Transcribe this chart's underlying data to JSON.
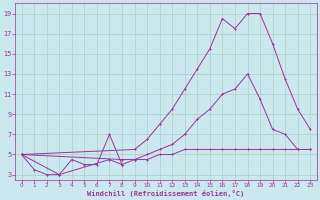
{
  "background_color": "#cce8ef",
  "grid_color": "#aacccc",
  "line_color": "#993399",
  "marker_color": "#993399",
  "xlabel": "Windchill (Refroidissement éolien,°C)",
  "xlabel_color": "#993399",
  "tick_color": "#993399",
  "xlim": [
    -0.5,
    23.5
  ],
  "ylim": [
    2.5,
    20
  ],
  "yticks": [
    3,
    5,
    7,
    9,
    11,
    13,
    15,
    17,
    19
  ],
  "xticks": [
    0,
    1,
    2,
    3,
    4,
    5,
    6,
    7,
    8,
    9,
    10,
    11,
    12,
    13,
    14,
    15,
    16,
    17,
    18,
    19,
    20,
    21,
    22,
    23
  ],
  "s1_x": [
    0,
    1,
    2,
    3,
    4,
    5,
    6,
    7,
    8
  ],
  "s1_y": [
    5,
    3.5,
    3,
    3,
    4.5,
    4,
    4,
    7,
    4
  ],
  "s2_x": [
    0,
    8,
    9,
    10,
    11,
    12,
    13,
    14,
    15,
    16,
    17,
    18,
    19,
    20,
    21,
    22,
    23
  ],
  "s2_y": [
    5,
    4.5,
    4.5,
    5,
    5.5,
    6,
    7,
    8.5,
    9.5,
    11,
    11.5,
    13,
    10.5,
    7.5,
    7,
    5.5,
    5.5
  ],
  "s3_x": [
    0,
    9,
    10,
    11,
    12,
    13,
    14,
    15,
    16,
    17,
    18,
    19,
    20,
    21,
    22,
    23
  ],
  "s3_y": [
    5,
    5.5,
    6.5,
    8,
    9.5,
    11.5,
    13.5,
    15.5,
    18.5,
    17.5,
    19,
    19,
    16,
    12.5,
    9.5,
    7.5
  ],
  "s4_x": [
    0,
    3,
    7,
    8,
    9,
    10,
    11,
    12,
    13,
    14,
    15,
    16,
    17,
    18,
    19,
    20,
    21,
    22,
    23
  ],
  "s4_y": [
    5,
    3,
    4.5,
    4,
    4.5,
    4.5,
    5,
    5,
    5.5,
    5.5,
    5.5,
    5.5,
    5.5,
    5.5,
    5.5,
    5.5,
    5.5,
    5.5,
    5.5
  ]
}
